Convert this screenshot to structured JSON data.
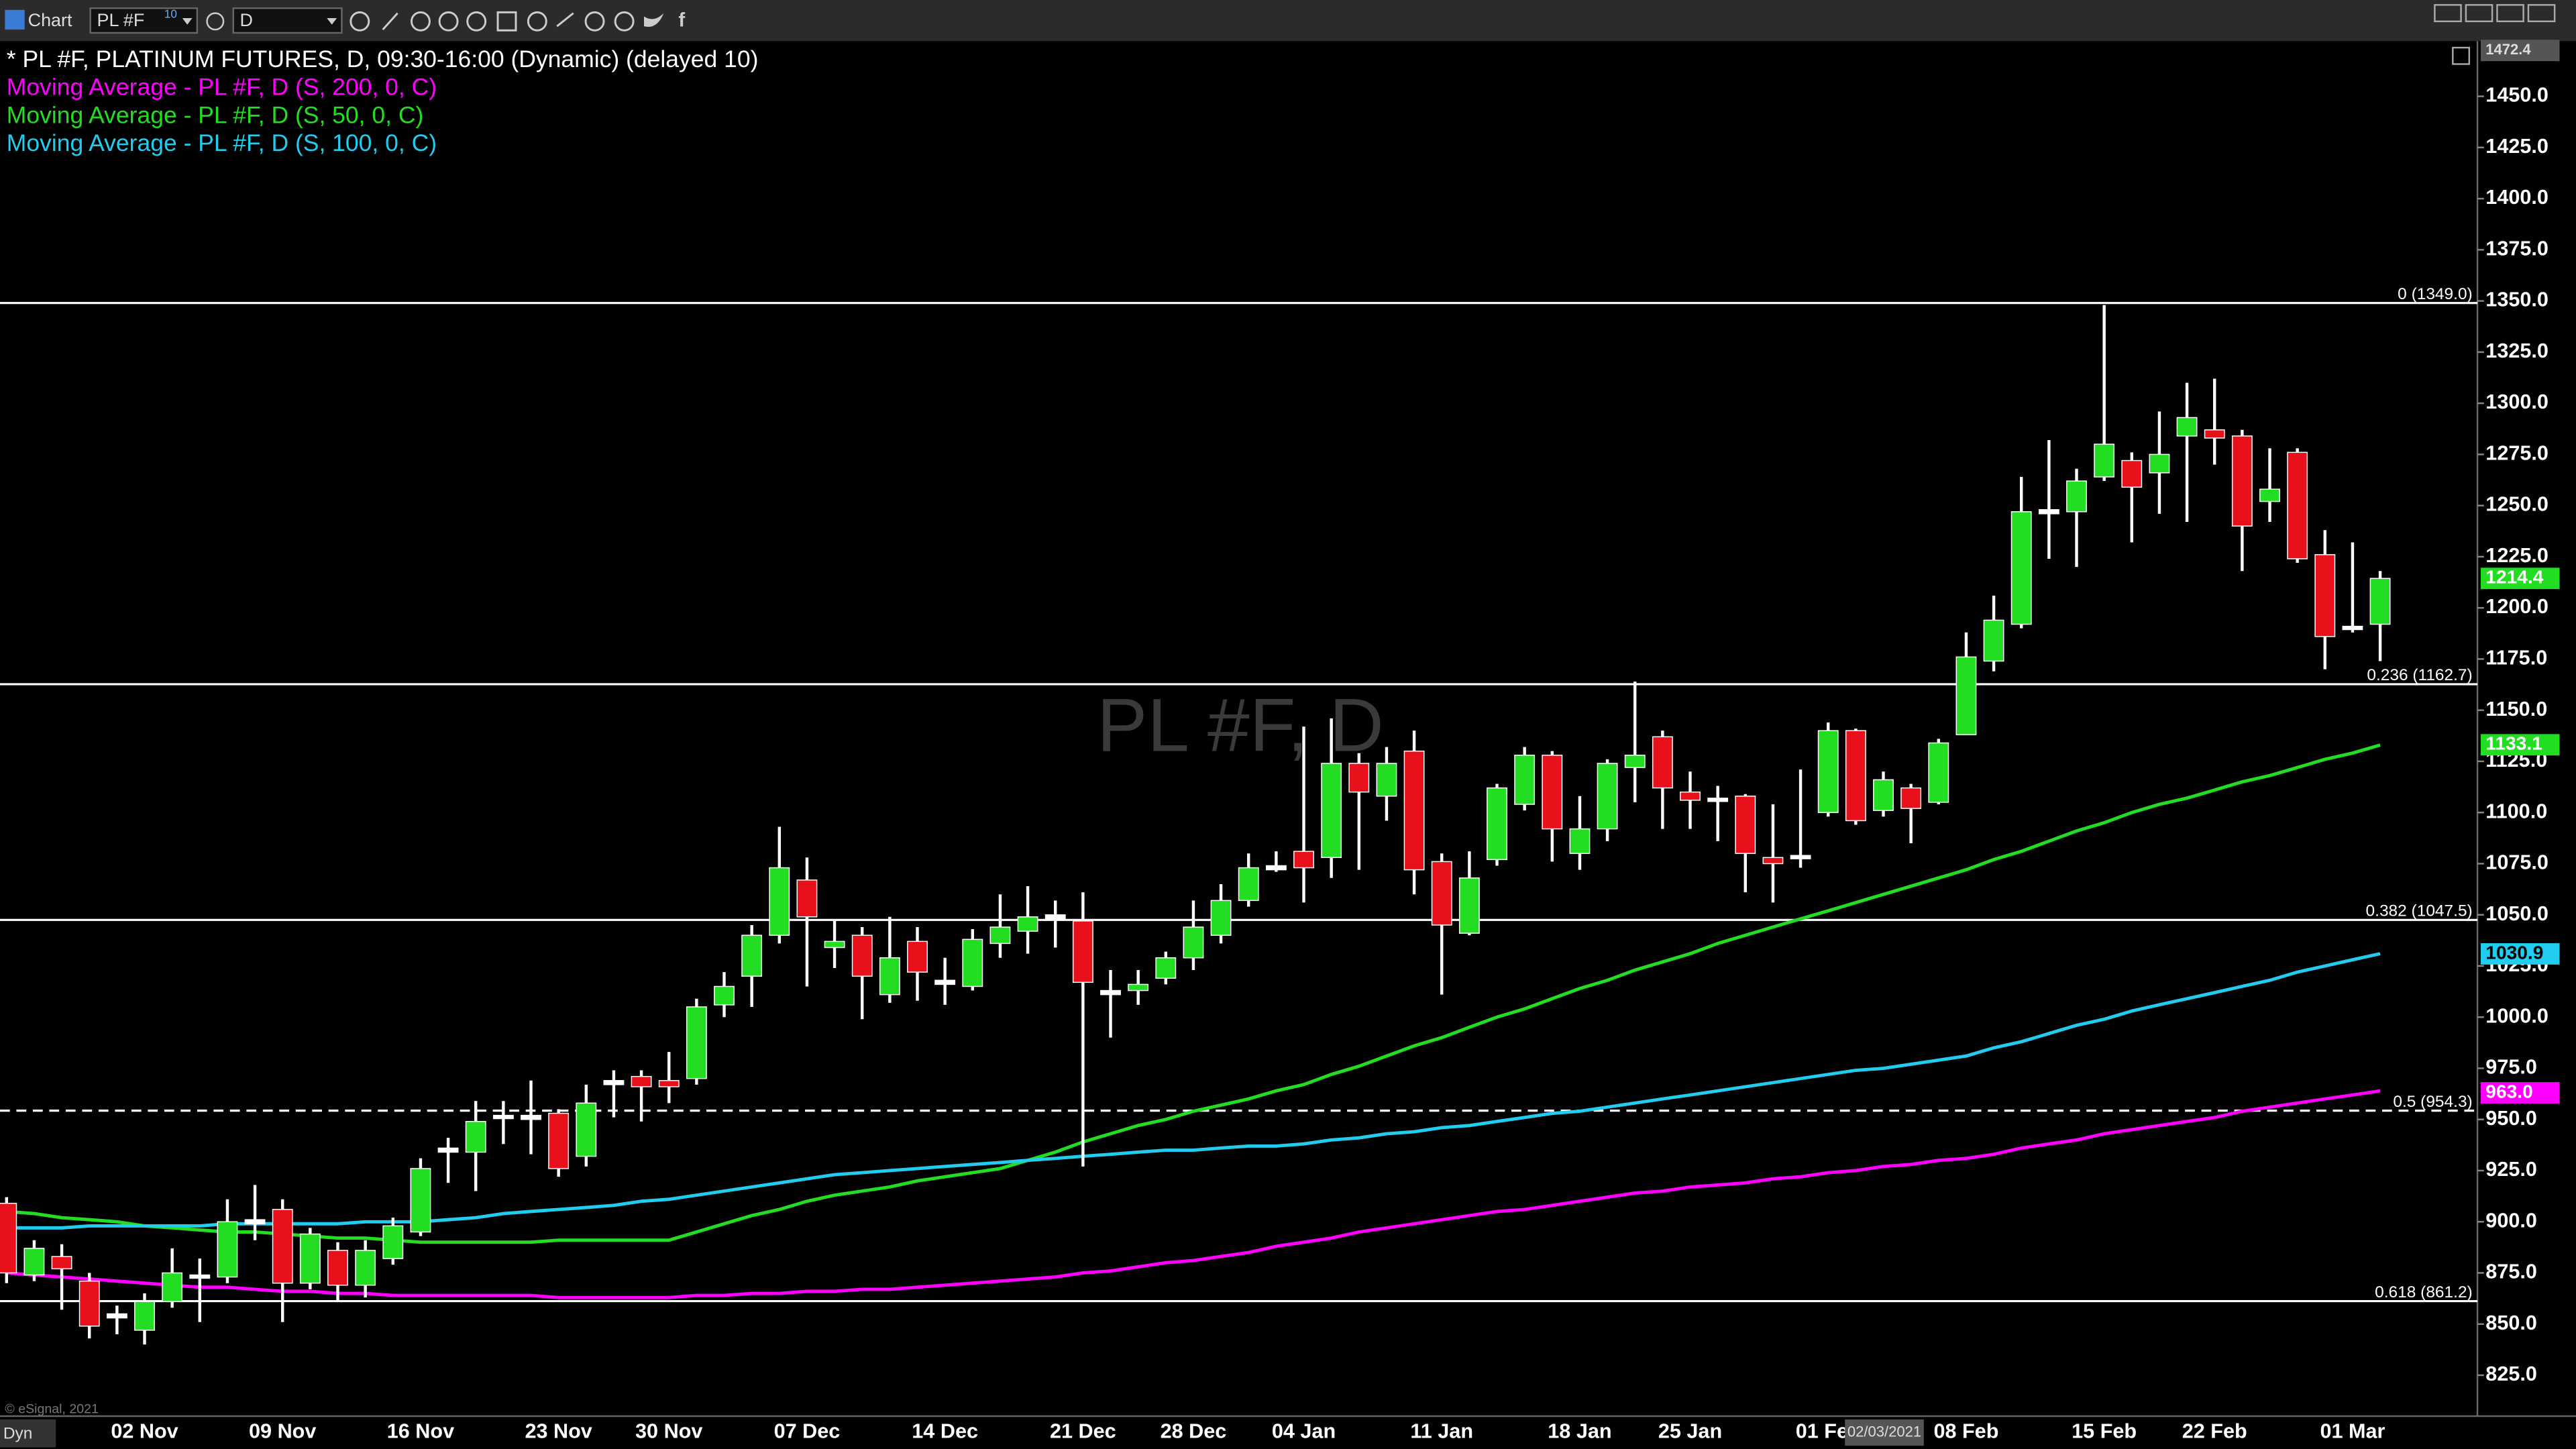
{
  "toolbar": {
    "app": "Chart",
    "symbol": "PL #F",
    "symbol_badge": "10",
    "interval": "D"
  },
  "footer": {
    "copyright": "© eSignal, 2021",
    "mode": "Dyn",
    "cursor_date": "02/03/2021"
  },
  "chart_data": {
    "type": "candlestick",
    "title": "* PL #F, PLATINUM FUTURES, D, 09:30-16:00 (Dynamic) (delayed 10)",
    "watermark": "PL #F, D",
    "up_color": "#22dd22",
    "down_color": "#e8101a",
    "doji_color": "#ffffff",
    "categories": [
      null,
      null,
      null,
      null,
      null,
      "02 Nov",
      null,
      null,
      null,
      null,
      "09 Nov",
      null,
      null,
      null,
      null,
      "16 Nov",
      null,
      null,
      null,
      null,
      "23 Nov",
      null,
      null,
      null,
      "30 Nov",
      null,
      null,
      null,
      null,
      "07 Dec",
      null,
      null,
      null,
      null,
      "14 Dec",
      null,
      null,
      null,
      null,
      "21 Dec",
      null,
      null,
      null,
      "28 Dec",
      null,
      null,
      null,
      "04 Jan",
      null,
      null,
      null,
      null,
      "11 Jan",
      null,
      null,
      null,
      null,
      "18 Jan",
      null,
      null,
      null,
      "25 Jan",
      null,
      null,
      null,
      null,
      "01 Feb",
      null,
      null,
      null,
      null,
      "08 Feb",
      null,
      null,
      null,
      null,
      "15 Feb",
      null,
      null,
      null,
      "22 Feb",
      null,
      null,
      null,
      null,
      "01 Mar",
      null
    ],
    "open": [
      909,
      874,
      883,
      871,
      855,
      847,
      861,
      873,
      873,
      899,
      906,
      870,
      886,
      869,
      882,
      895,
      934,
      934,
      951,
      950,
      953,
      932,
      967,
      971,
      969,
      970,
      1006,
      1020,
      1040,
      1067,
      1034,
      1040,
      1011,
      1037,
      1016,
      1015,
      1036,
      1042,
      1048,
      1047,
      1013,
      1013,
      1019,
      1029,
      1040,
      1057,
      1072,
      1081,
      1078,
      1124,
      1108,
      1130,
      1076,
      1041,
      1077,
      1104,
      1128,
      1080,
      1092,
      1122,
      1137,
      1110,
      1106,
      1108,
      1078,
      1078,
      1100,
      1140,
      1101,
      1112,
      1105,
      1138,
      1174,
      1192,
      1246,
      1247,
      1264,
      1272,
      1266,
      1284,
      1287,
      1284,
      1252,
      1276,
      1226,
      1190,
      1192
    ],
    "high": [
      912,
      891,
      889,
      875,
      859,
      865,
      887,
      882,
      911,
      918,
      911,
      897,
      890,
      891,
      902,
      931,
      941,
      959,
      959,
      969,
      955,
      967,
      974,
      974,
      983,
      1009,
      1022,
      1045,
      1093,
      1078,
      1047,
      1044,
      1049,
      1044,
      1029,
      1043,
      1060,
      1064,
      1057,
      1061,
      1023,
      1023,
      1032,
      1057,
      1065,
      1080,
      1081,
      1142,
      1146,
      1129,
      1132,
      1140,
      1080,
      1081,
      1114,
      1132,
      1130,
      1108,
      1126,
      1164,
      1140,
      1120,
      1113,
      1109,
      1104,
      1121,
      1144,
      1141,
      1120,
      1114,
      1136,
      1188,
      1206,
      1264,
      1282,
      1268,
      1348,
      1276,
      1296,
      1310,
      1312,
      1287,
      1278,
      1278,
      1238,
      1232,
      1218
    ],
    "low": [
      870,
      871,
      857,
      843,
      845,
      840,
      858,
      851,
      870,
      891,
      851,
      867,
      861,
      863,
      879,
      893,
      919,
      915,
      938,
      933,
      922,
      927,
      951,
      949,
      958,
      967,
      1000,
      1005,
      1036,
      1015,
      1024,
      999,
      1007,
      1008,
      1006,
      1013,
      1029,
      1031,
      1034,
      927,
      990,
      1006,
      1016,
      1023,
      1036,
      1054,
      1071,
      1056,
      1068,
      1072,
      1096,
      1060,
      1011,
      1040,
      1074,
      1101,
      1076,
      1072,
      1086,
      1105,
      1092,
      1092,
      1086,
      1061,
      1056,
      1073,
      1098,
      1094,
      1098,
      1085,
      1104,
      1138,
      1169,
      1190,
      1224,
      1220,
      1262,
      1232,
      1246,
      1242,
      1270,
      1218,
      1242,
      1222,
      1170,
      1188,
      1174
    ],
    "close": [
      875,
      887,
      877,
      849,
      853,
      861,
      875,
      874,
      900,
      901,
      870,
      894,
      869,
      886,
      898,
      926,
      936,
      949,
      952,
      952,
      926,
      958,
      969,
      966,
      966,
      1005,
      1015,
      1040,
      1073,
      1049,
      1037,
      1020,
      1029,
      1022,
      1018,
      1038,
      1044,
      1049,
      1050,
      1017,
      1011,
      1016,
      1029,
      1044,
      1057,
      1073,
      1074,
      1073,
      1124,
      1110,
      1124,
      1072,
      1045,
      1068,
      1112,
      1128,
      1092,
      1092,
      1124,
      1128,
      1112,
      1106,
      1107,
      1080,
      1075,
      1079,
      1140,
      1096,
      1116,
      1102,
      1134,
      1176,
      1194,
      1247,
      1248,
      1262,
      1280,
      1259,
      1275,
      1293,
      1283,
      1240,
      1258,
      1224,
      1186,
      1191,
      1214.4
    ],
    "series": [
      {
        "name": "Moving Average - PL #F, D (S, 200, 0, C)",
        "color": "#ff00ff",
        "values": [
          875,
          874,
          873,
          872,
          871,
          870,
          869,
          868,
          868,
          867,
          866,
          866,
          865,
          865,
          864,
          864,
          864,
          864,
          864,
          864,
          863,
          863,
          863,
          863,
          863,
          864,
          864,
          865,
          865,
          866,
          866,
          867,
          867,
          868,
          869,
          870,
          871,
          872,
          873,
          875,
          876,
          878,
          880,
          881,
          883,
          885,
          888,
          890,
          892,
          895,
          897,
          899,
          901,
          903,
          905,
          906,
          908,
          910,
          912,
          914,
          915,
          917,
          918,
          919,
          921,
          922,
          924,
          925,
          927,
          928,
          930,
          931,
          933,
          936,
          938,
          940,
          943,
          945,
          947,
          949,
          951,
          954,
          956,
          958,
          960,
          962,
          964
        ]
      },
      {
        "name": "Moving Average - PL #F, D (S, 50, 0, C)",
        "color": "#22dd22",
        "values": [
          905,
          904,
          902,
          901,
          900,
          898,
          897,
          896,
          895,
          895,
          894,
          893,
          892,
          892,
          891,
          890,
          890,
          890,
          890,
          890,
          891,
          891,
          891,
          891,
          891,
          895,
          899,
          903,
          906,
          910,
          913,
          915,
          917,
          920,
          922,
          924,
          926,
          930,
          934,
          939,
          943,
          947,
          950,
          954,
          957,
          960,
          964,
          967,
          972,
          976,
          981,
          986,
          990,
          995,
          1000,
          1004,
          1009,
          1014,
          1018,
          1023,
          1027,
          1031,
          1036,
          1040,
          1044,
          1048,
          1052,
          1056,
          1060,
          1064,
          1068,
          1072,
          1077,
          1081,
          1086,
          1091,
          1095,
          1100,
          1104,
          1107,
          1111,
          1115,
          1118,
          1122,
          1126,
          1129,
          1133
        ]
      },
      {
        "name": "Moving Average - PL #F, D (S, 100, 0, C)",
        "color": "#22ccee",
        "values": [
          897,
          897,
          897,
          898,
          898,
          898,
          898,
          898,
          899,
          899,
          899,
          899,
          899,
          900,
          900,
          900,
          901,
          902,
          904,
          905,
          906,
          907,
          908,
          910,
          911,
          913,
          915,
          917,
          919,
          921,
          923,
          924,
          925,
          926,
          927,
          928,
          929,
          930,
          931,
          932,
          933,
          934,
          935,
          935,
          936,
          937,
          937,
          938,
          940,
          941,
          943,
          944,
          946,
          947,
          949,
          951,
          953,
          954,
          956,
          958,
          960,
          962,
          964,
          966,
          968,
          970,
          972,
          974,
          975,
          977,
          979,
          981,
          985,
          988,
          992,
          996,
          999,
          1003,
          1006,
          1009,
          1012,
          1015,
          1018,
          1022,
          1025,
          1028,
          1031
        ]
      }
    ],
    "fib_levels": [
      {
        "value": 1349,
        "label": "0 (1349.0)"
      },
      {
        "value": 1162.7,
        "label": "0.236 (1162.7)"
      },
      {
        "value": 1047.5,
        "label": "0.382 (1047.5)"
      },
      {
        "value": 954.3,
        "label": "0.5 (954.3)",
        "dashed": true
      },
      {
        "value": 861.2,
        "label": "0.618 (861.2)"
      }
    ],
    "price_markers": [
      {
        "value": 1472.4,
        "label": "1472.4",
        "color": "#555555"
      },
      {
        "value": 1214.4,
        "label": "1214.4",
        "color": "#22dd22"
      },
      {
        "value": 1133.1,
        "label": "1133.1",
        "color": "#22dd22"
      },
      {
        "value": 1030.9,
        "label": "1030.9",
        "color": "#22ccee"
      },
      {
        "value": 963.0,
        "label": "963.0",
        "color": "#ff00ff"
      }
    ],
    "ylim": [
      805,
      1477
    ],
    "yticks": [
      {
        "value": 825,
        "label": "825.0"
      },
      {
        "value": 850,
        "label": "850.0"
      },
      {
        "value": 875,
        "label": "875.0"
      },
      {
        "value": 900,
        "label": "900.0"
      },
      {
        "value": 925,
        "label": "925.0"
      },
      {
        "value": 950,
        "label": "950.0"
      },
      {
        "value": 975,
        "label": "975.0"
      },
      {
        "value": 1000,
        "label": "1000.0"
      },
      {
        "value": 1025,
        "label": "1025.0"
      },
      {
        "value": 1050,
        "label": "1050.0"
      },
      {
        "value": 1075,
        "label": "1075.0"
      },
      {
        "value": 1100,
        "label": "1100.0"
      },
      {
        "value": 1125,
        "label": "1125.0"
      },
      {
        "value": 1150,
        "label": "1150.0"
      },
      {
        "value": 1175,
        "label": "1175.0"
      },
      {
        "value": 1200,
        "label": "1200.0"
      },
      {
        "value": 1225,
        "label": "1225.0"
      },
      {
        "value": 1250,
        "label": "1250.0"
      },
      {
        "value": 1275,
        "label": "1275.0"
      },
      {
        "value": 1300,
        "label": "1300.0"
      },
      {
        "value": 1325,
        "label": "1325.0"
      },
      {
        "value": 1350,
        "label": "1350.0"
      },
      {
        "value": 1375,
        "label": "1375.0"
      },
      {
        "value": 1400,
        "label": "1400.0"
      },
      {
        "value": 1425,
        "label": "1425.0"
      },
      {
        "value": 1450,
        "label": "1450.0"
      }
    ],
    "grid": false
  }
}
